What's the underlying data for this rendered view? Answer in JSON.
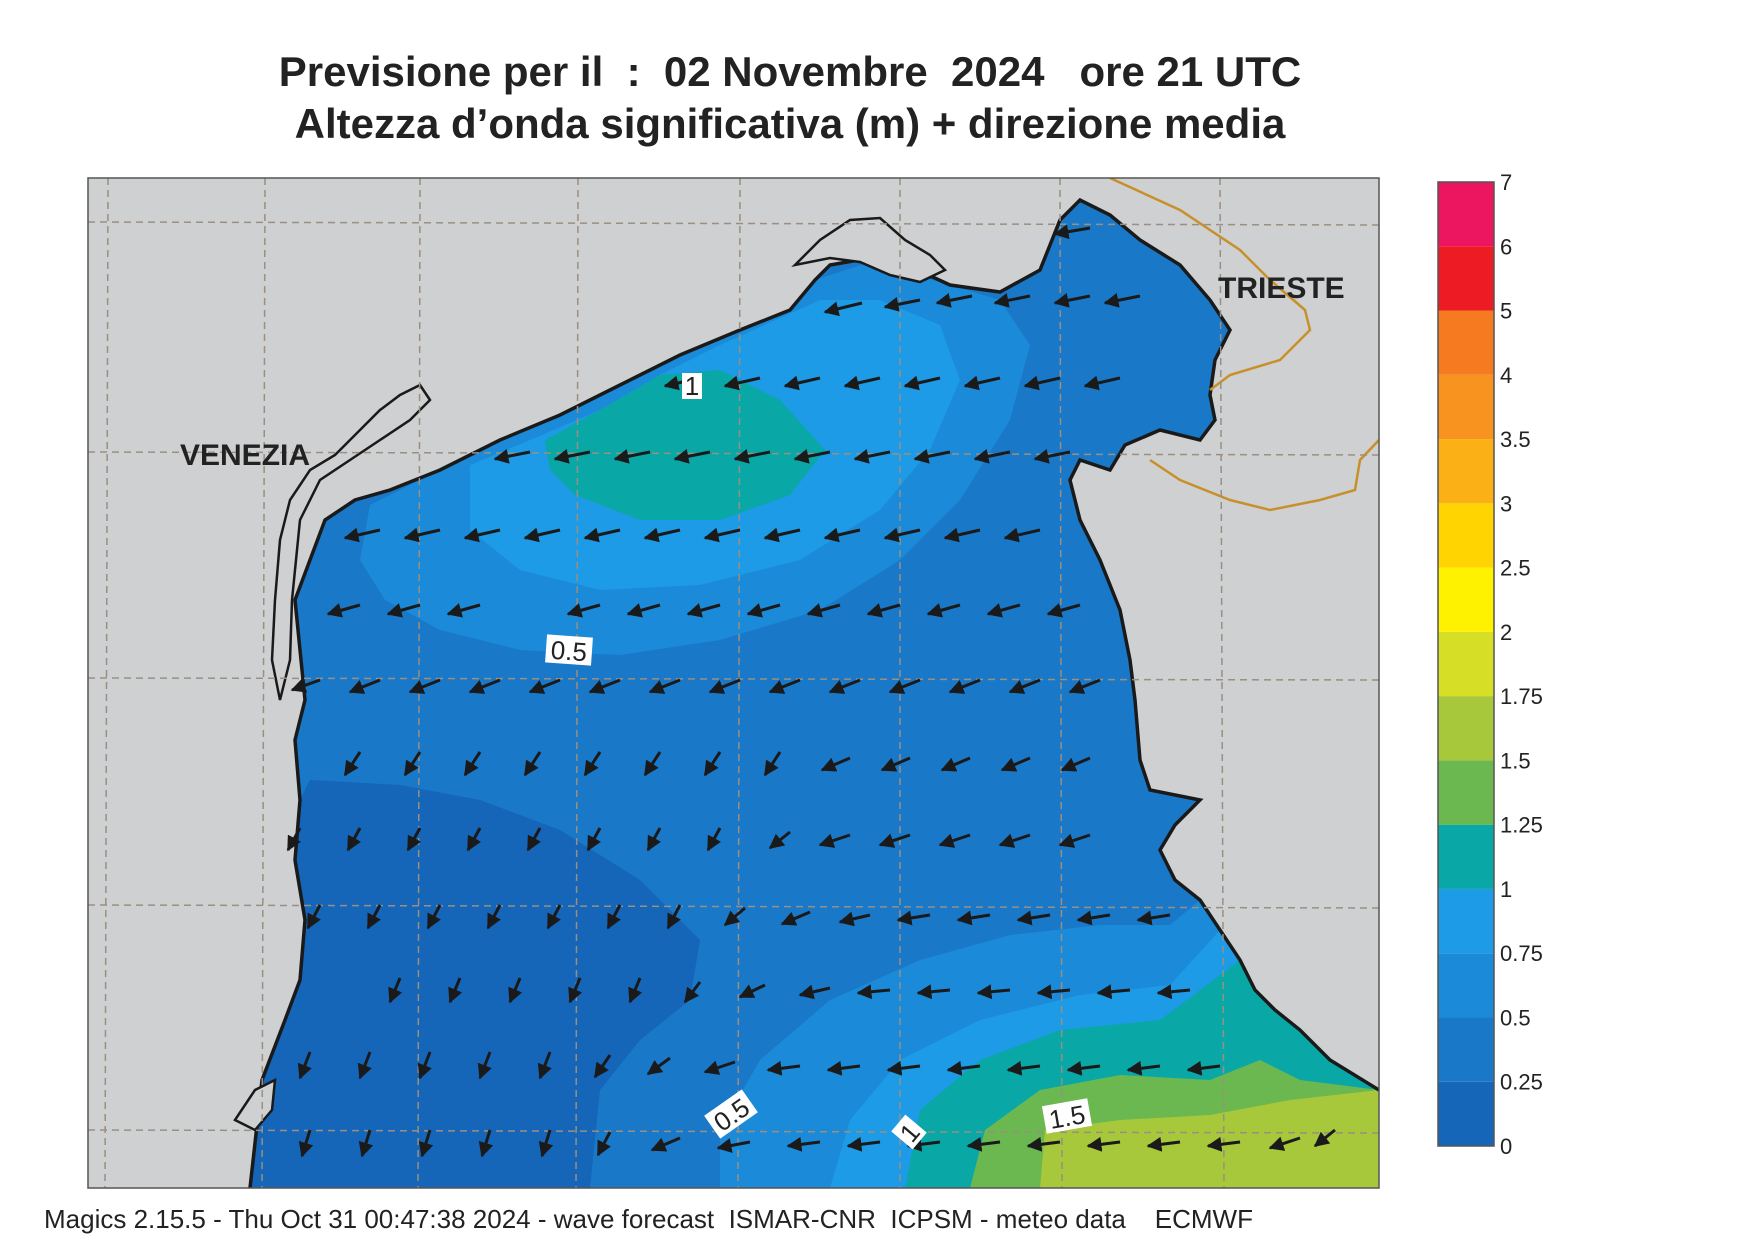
{
  "header": {
    "title_line1": "Previsione per il  :  02 Novembre  2024   ore 21 UTC",
    "title_line2": "Altezza d’onda significativa (m) + direzione media"
  },
  "map": {
    "cities": [
      {
        "key": "venezia",
        "label": "VENEZIA"
      },
      {
        "key": "trieste",
        "label": "TRIESTE"
      }
    ],
    "contour_labels": [
      "1",
      "0.5",
      "0.5",
      "1",
      "1.5"
    ],
    "wave_direction_arrows": "dominant direction toward west-southwest in the north, toward south-southwest in the centre"
  },
  "legend": {
    "unit": "m",
    "ticks": [
      "0",
      "0.25",
      "0.5",
      "0.75",
      "1",
      "1.25",
      "1.5",
      "1.75",
      "2",
      "2.5",
      "3",
      "3.5",
      "4",
      "5",
      "6",
      "7"
    ],
    "colors": [
      "#1565b8",
      "#1a78c8",
      "#1b8ad8",
      "#1d9be6",
      "#0aa7a7",
      "#6ab84f",
      "#a6c83a",
      "#d6df25",
      "#fff200",
      "#ffd400",
      "#fbb116",
      "#f7931e",
      "#f57a20",
      "#ed1c24",
      "#ec1560"
    ]
  },
  "colors": {
    "land": "#cfd0d2",
    "coast": "#1a1a1a",
    "border": "#c8902a",
    "grid": "#9a8f80"
  },
  "footer": {
    "text": "Magics 2.15.5 - Thu Oct 31 00:47:38 2024 - wave forecast  ISMAR-CNR  ICPSM - meteo data    ECMWF"
  }
}
